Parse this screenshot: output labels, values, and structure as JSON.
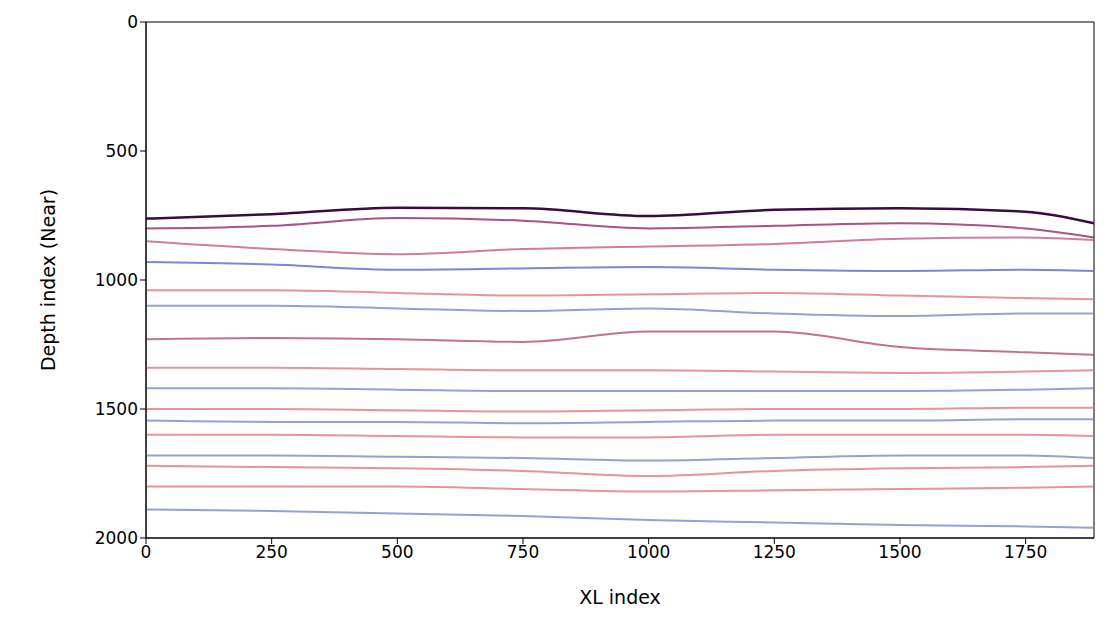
{
  "chart_data": {
    "type": "line",
    "xlabel": "XL index",
    "ylabel": "Depth index (Near)",
    "x": [
      0,
      250,
      500,
      750,
      1000,
      1250,
      1500,
      1750,
      1886
    ],
    "xlim": [
      0,
      1886
    ],
    "ylim": [
      2000,
      0
    ],
    "xticks": [
      0,
      250,
      500,
      750,
      1000,
      1250,
      1500,
      1750
    ],
    "yticks": [
      0,
      500,
      1000,
      1500,
      2000
    ],
    "grid": false,
    "series": [
      {
        "color": "#3b0a45",
        "values": [
          762,
          745,
          720,
          722,
          752,
          728,
          722,
          735,
          780
        ]
      },
      {
        "color": "#8b1a5a",
        "values": [
          800,
          790,
          760,
          770,
          800,
          790,
          780,
          800,
          835
        ]
      },
      {
        "color": "#c05080",
        "values": [
          850,
          880,
          900,
          880,
          870,
          860,
          840,
          835,
          845
        ]
      },
      {
        "color": "#5060c0",
        "values": [
          930,
          940,
          960,
          955,
          950,
          960,
          965,
          960,
          965
        ]
      },
      {
        "color": "#e07070",
        "values": [
          1040,
          1040,
          1050,
          1060,
          1055,
          1050,
          1060,
          1070,
          1075
        ]
      },
      {
        "color": "#7080d0",
        "values": [
          1100,
          1100,
          1110,
          1120,
          1110,
          1130,
          1140,
          1130,
          1130
        ]
      },
      {
        "color": "#b04070",
        "values": [
          1230,
          1225,
          1230,
          1240,
          1200,
          1200,
          1260,
          1280,
          1290
        ]
      },
      {
        "color": "#e07070",
        "values": [
          1340,
          1340,
          1345,
          1350,
          1350,
          1355,
          1360,
          1355,
          1350
        ]
      },
      {
        "color": "#7080d0",
        "values": [
          1420,
          1420,
          1425,
          1430,
          1430,
          1430,
          1430,
          1425,
          1420
        ]
      },
      {
        "color": "#e07070",
        "values": [
          1500,
          1500,
          1505,
          1510,
          1505,
          1500,
          1500,
          1495,
          1495
        ]
      },
      {
        "color": "#7080d0",
        "values": [
          1545,
          1550,
          1550,
          1555,
          1550,
          1545,
          1545,
          1540,
          1540
        ]
      },
      {
        "color": "#e07070",
        "values": [
          1600,
          1600,
          1605,
          1610,
          1610,
          1600,
          1600,
          1600,
          1605
        ]
      },
      {
        "color": "#7080d0",
        "values": [
          1680,
          1680,
          1685,
          1690,
          1700,
          1690,
          1680,
          1680,
          1690
        ]
      },
      {
        "color": "#e07070",
        "values": [
          1720,
          1725,
          1730,
          1740,
          1760,
          1740,
          1730,
          1725,
          1720
        ]
      },
      {
        "color": "#e07070",
        "values": [
          1800,
          1800,
          1800,
          1810,
          1820,
          1815,
          1810,
          1805,
          1800
        ]
      },
      {
        "color": "#7080d0",
        "values": [
          1890,
          1895,
          1905,
          1915,
          1930,
          1940,
          1950,
          1955,
          1960
        ]
      }
    ]
  }
}
